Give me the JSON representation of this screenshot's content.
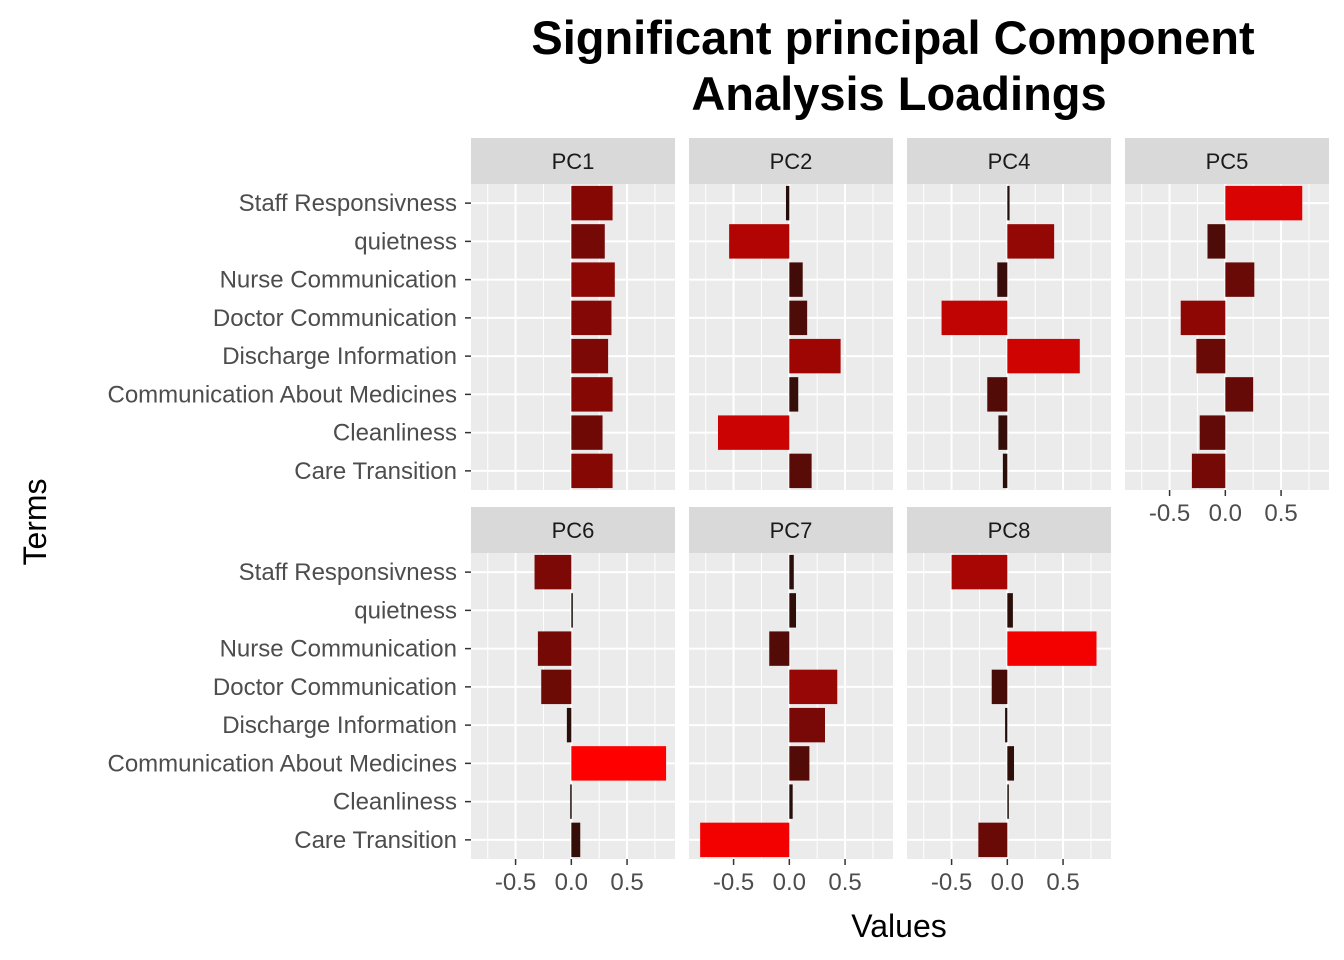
{
  "chart_data": {
    "type": "bar",
    "orientation": "horizontal",
    "faceted": true,
    "title": "Significant principal Component Analysis Loadings",
    "title_lines": [
      "Significant principal Component",
      "Analysis Loadings"
    ],
    "xlabel": "Values",
    "ylabel": "Terms",
    "categories": [
      "Staff Responsivness",
      "quietness",
      "Nurse Communication",
      "Doctor Communication",
      "Discharge Information",
      "Communication About Medicines",
      "Cleanliness",
      "Care Transition"
    ],
    "xlim": [
      -0.9,
      0.93
    ],
    "x_ticks": [
      -0.5,
      0.0,
      0.5
    ],
    "x_tick_labels": [
      "-0.5",
      "0.0",
      "0.5"
    ],
    "grid": true,
    "legend": "none",
    "color_scale": {
      "low": "#1a0f0a",
      "high": "#ff0000"
    },
    "panels": [
      {
        "name": "PC1",
        "values": [
          0.37,
          0.3,
          0.39,
          0.36,
          0.33,
          0.37,
          0.28,
          0.37
        ]
      },
      {
        "name": "PC2",
        "values": [
          -0.03,
          -0.54,
          0.12,
          0.16,
          0.46,
          0.08,
          -0.64,
          0.2
        ]
      },
      {
        "name": "PC4",
        "values": [
          0.02,
          0.42,
          -0.09,
          -0.59,
          0.65,
          -0.18,
          -0.08,
          -0.04
        ]
      },
      {
        "name": "PC5",
        "values": [
          0.69,
          -0.16,
          0.26,
          -0.4,
          -0.26,
          0.25,
          -0.23,
          -0.3
        ]
      },
      {
        "name": "PC6",
        "values": [
          -0.33,
          0.01,
          -0.3,
          -0.27,
          -0.04,
          0.85,
          -0.01,
          0.08
        ]
      },
      {
        "name": "PC7",
        "values": [
          0.04,
          0.06,
          -0.18,
          0.43,
          0.32,
          0.18,
          0.03,
          -0.8
        ]
      },
      {
        "name": "PC8",
        "values": [
          -0.5,
          0.05,
          0.8,
          -0.14,
          -0.02,
          0.06,
          0.01,
          -0.26
        ]
      }
    ]
  }
}
